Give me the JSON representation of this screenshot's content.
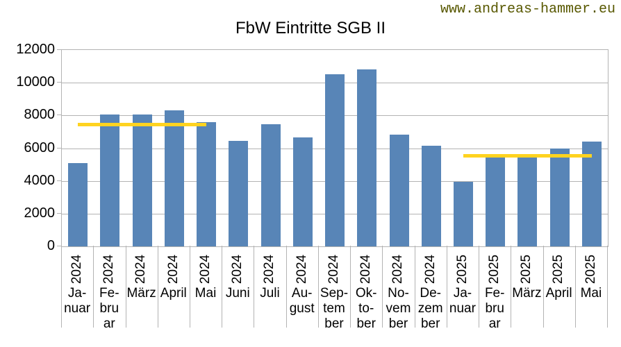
{
  "page": {
    "watermark": "www.andreas-hammer.eu",
    "title": "FbW Eintritte SGB II"
  },
  "colors": {
    "bar": "#5885B7",
    "reference_line": "#FFD320",
    "grid": "#B3B3B3",
    "watermark_text": "#585800",
    "axis_text": "#000000",
    "background": "#FFFFFF"
  },
  "chart_data": {
    "type": "bar",
    "title": "FbW Eintritte SGB II",
    "xlabel": "",
    "ylabel": "",
    "ylim": [
      0,
      12000
    ],
    "y_tick_step": 2000,
    "y_ticks": [
      0,
      2000,
      4000,
      6000,
      8000,
      10000,
      12000
    ],
    "grid": "horizontal",
    "legend": "none",
    "categories": [
      {
        "year": "2024",
        "month": "Januar",
        "lines": [
          "Ja-",
          "nuar"
        ]
      },
      {
        "year": "2024",
        "month": "Februar",
        "lines": [
          "Fe-",
          "bru",
          "ar"
        ]
      },
      {
        "year": "2024",
        "month": "März",
        "lines": [
          "März"
        ]
      },
      {
        "year": "2024",
        "month": "April",
        "lines": [
          "April"
        ]
      },
      {
        "year": "2024",
        "month": "Mai",
        "lines": [
          "Mai"
        ]
      },
      {
        "year": "2024",
        "month": "Juni",
        "lines": [
          "Juni"
        ]
      },
      {
        "year": "2024",
        "month": "Juli",
        "lines": [
          "Juli"
        ]
      },
      {
        "year": "2024",
        "month": "August",
        "lines": [
          "Au-",
          "gust"
        ]
      },
      {
        "year": "2024",
        "month": "September",
        "lines": [
          "Sep-",
          "tem",
          "ber"
        ]
      },
      {
        "year": "2024",
        "month": "Oktober",
        "lines": [
          "Ok-",
          "to-",
          "ber"
        ]
      },
      {
        "year": "2024",
        "month": "November",
        "lines": [
          "No-",
          "vem",
          "ber"
        ]
      },
      {
        "year": "2024",
        "month": "Dezember",
        "lines": [
          "De-",
          "zem",
          "ber"
        ]
      },
      {
        "year": "2025",
        "month": "Januar",
        "lines": [
          "Ja-",
          "nuar"
        ]
      },
      {
        "year": "2025",
        "month": "Februar",
        "lines": [
          "Fe-",
          "bru",
          "ar"
        ]
      },
      {
        "year": "2025",
        "month": "März",
        "lines": [
          "März"
        ]
      },
      {
        "year": "2025",
        "month": "April",
        "lines": [
          "April"
        ]
      },
      {
        "year": "2025",
        "month": "Mai",
        "lines": [
          "Mai"
        ]
      }
    ],
    "values": [
      5100,
      8050,
      8050,
      8300,
      7600,
      6450,
      7450,
      6650,
      10500,
      10800,
      6850,
      6150,
      3950,
      5450,
      5650,
      6000,
      6400
    ],
    "reference_lines": [
      {
        "value": 7430,
        "from_index": 0,
        "to_index": 4,
        "color": "#FFD320"
      },
      {
        "value": 5530,
        "from_index": 12,
        "to_index": 16,
        "color": "#FFD320"
      }
    ]
  }
}
